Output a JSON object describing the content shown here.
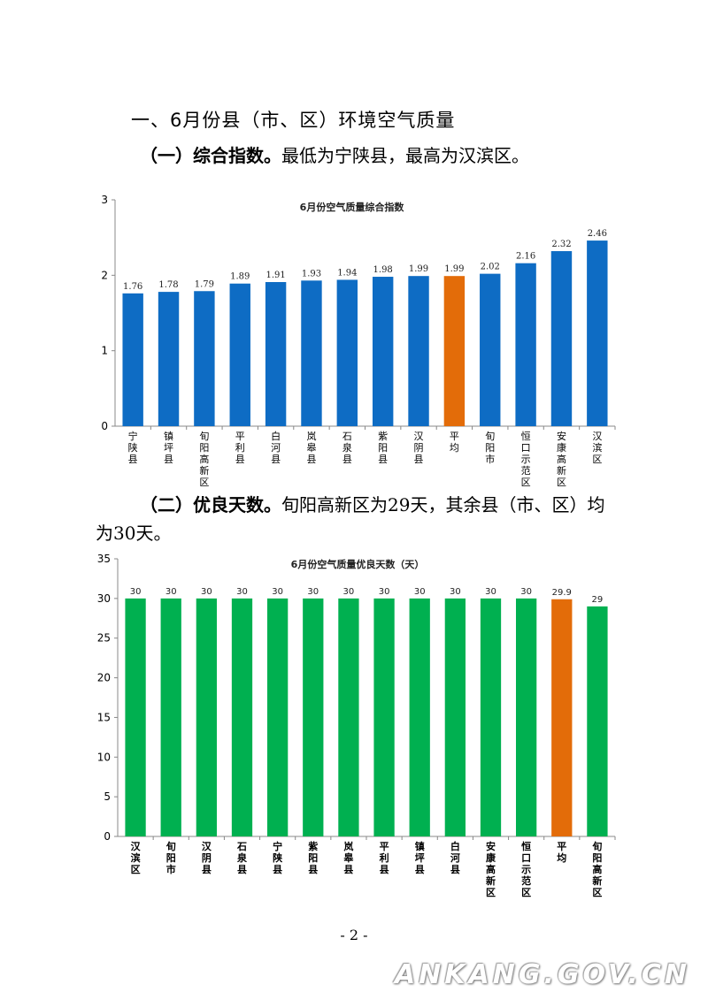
{
  "section": {
    "heading": "一、6月份县（市、区）环境空气质量"
  },
  "para1": {
    "label": "（一）综合指数。",
    "text": "最低为宁陕县，最高为汉滨区。"
  },
  "para2": {
    "label": "（二）优良天数。",
    "text": "旬阳高新区为29天，其余县（市、区）均为30天。"
  },
  "footer": {
    "page": "- 2 -"
  },
  "watermark": "ANKANG.GOV.CN",
  "colors": {
    "blue": "#0E6CC4",
    "green": "#00B050",
    "orange": "#E36C09"
  },
  "chart_data": [
    {
      "type": "bar",
      "title": "6月份空气质量综合指数",
      "categories": [
        "宁陕县",
        "镇坪县",
        "旬阳高新区",
        "平利县",
        "白河县",
        "岚皋县",
        "石泉县",
        "紫阳县",
        "汉阴县",
        "平均",
        "旬阳市",
        "恒口示范区",
        "安康高新区",
        "汉滨区"
      ],
      "values": [
        1.76,
        1.78,
        1.79,
        1.89,
        1.91,
        1.93,
        1.94,
        1.98,
        1.99,
        1.99,
        2.02,
        2.16,
        2.32,
        2.46
      ],
      "labels": [
        "1.76",
        "1.78",
        "1.79",
        "1.89",
        "1.91",
        "1.93",
        "1.94",
        "1.98",
        "1.99",
        "1.99",
        "2.02",
        "2.16",
        "2.32",
        "2.46"
      ],
      "highlight_index": 9,
      "ylim": [
        0,
        3
      ],
      "yticks": [
        0,
        1,
        2,
        3
      ],
      "grid": false,
      "xlabel": "",
      "ylabel": ""
    },
    {
      "type": "bar",
      "title": "6月份空气质量优良天数（天）",
      "categories": [
        "汉滨区",
        "旬阳市",
        "汉阴县",
        "石泉县",
        "宁陕县",
        "紫阳县",
        "岚皋县",
        "平利县",
        "镇坪县",
        "白河县",
        "安康高新区",
        "恒口示范区",
        "平均",
        "旬阳高新区"
      ],
      "values": [
        30,
        30,
        30,
        30,
        30,
        30,
        30,
        30,
        30,
        30,
        30,
        30,
        29.9,
        29
      ],
      "labels": [
        "30",
        "30",
        "30",
        "30",
        "30",
        "30",
        "30",
        "30",
        "30",
        "30",
        "30",
        "30",
        "29.9",
        "29"
      ],
      "highlight_index": 12,
      "ylim": [
        0,
        35
      ],
      "yticks": [
        0,
        5,
        10,
        15,
        20,
        25,
        30,
        35
      ],
      "grid": false,
      "xlabel": "",
      "ylabel": ""
    }
  ]
}
